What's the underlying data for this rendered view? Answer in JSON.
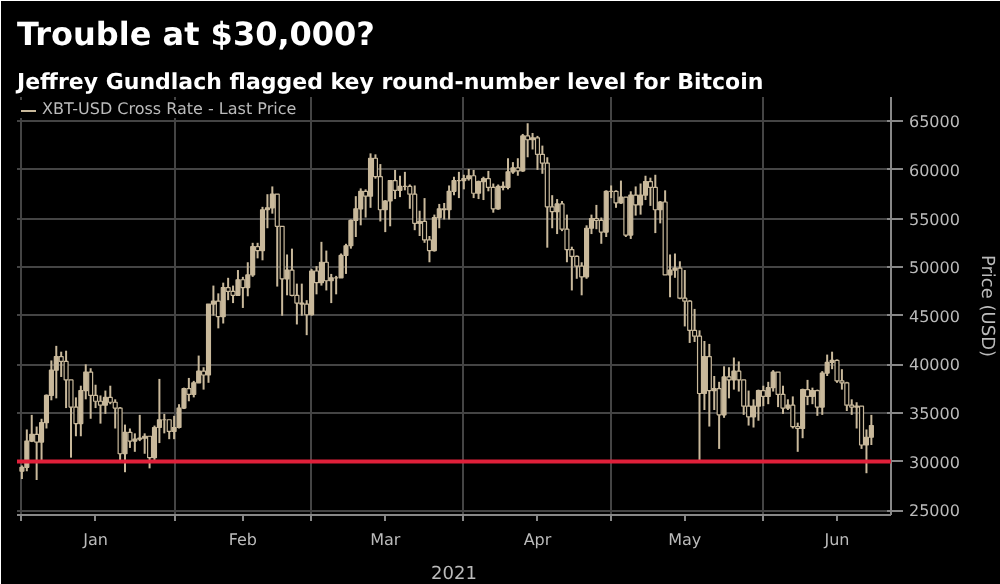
{
  "chart_data": {
    "type": "candlestick",
    "title": "Trouble at $30,000?",
    "subtitle": "Jeffrey Gundlach flagged key round-number level for Bitcoin",
    "xlabel": "2021",
    "ylabel": "Price (USD)",
    "x": [
      "2021-01-01",
      "2021-01-02",
      "2021-01-03",
      "2021-01-04",
      "2021-01-05",
      "2021-01-06",
      "2021-01-07",
      "2021-01-08",
      "2021-01-09",
      "2021-01-10",
      "2021-01-11",
      "2021-01-12",
      "2021-01-13",
      "2021-01-14",
      "2021-01-15",
      "2021-01-16",
      "2021-01-17",
      "2021-01-18",
      "2021-01-19",
      "2021-01-20",
      "2021-01-21",
      "2021-01-22",
      "2021-01-23",
      "2021-01-24",
      "2021-01-25",
      "2021-01-26",
      "2021-01-27",
      "2021-01-28",
      "2021-01-29",
      "2021-01-30",
      "2021-01-31",
      "2021-02-01",
      "2021-02-02",
      "2021-02-03",
      "2021-02-04",
      "2021-02-05",
      "2021-02-06",
      "2021-02-07",
      "2021-02-08",
      "2021-02-09",
      "2021-02-10",
      "2021-02-11",
      "2021-02-12",
      "2021-02-13",
      "2021-02-14",
      "2021-02-15",
      "2021-02-16",
      "2021-02-17",
      "2021-02-18",
      "2021-02-19",
      "2021-02-20",
      "2021-02-21",
      "2021-02-22",
      "2021-02-23",
      "2021-02-24",
      "2021-02-25",
      "2021-02-26",
      "2021-02-27",
      "2021-02-28",
      "2021-03-01",
      "2021-03-02",
      "2021-03-03",
      "2021-03-04",
      "2021-03-05",
      "2021-03-06",
      "2021-03-07",
      "2021-03-08",
      "2021-03-09",
      "2021-03-10",
      "2021-03-11",
      "2021-03-12",
      "2021-03-13",
      "2021-03-14",
      "2021-03-15",
      "2021-03-16",
      "2021-03-17",
      "2021-03-18",
      "2021-03-19",
      "2021-03-20",
      "2021-03-21",
      "2021-03-22",
      "2021-03-23",
      "2021-03-24",
      "2021-03-25",
      "2021-03-26",
      "2021-03-27",
      "2021-03-28",
      "2021-03-29",
      "2021-03-30",
      "2021-03-31",
      "2021-04-01",
      "2021-04-02",
      "2021-04-03",
      "2021-04-04",
      "2021-04-05",
      "2021-04-06",
      "2021-04-07",
      "2021-04-08",
      "2021-04-09",
      "2021-04-10",
      "2021-04-11",
      "2021-04-12",
      "2021-04-13",
      "2021-04-14",
      "2021-04-15",
      "2021-04-16",
      "2021-04-17",
      "2021-04-18",
      "2021-04-19",
      "2021-04-20",
      "2021-04-21",
      "2021-04-22",
      "2021-04-23",
      "2021-04-24",
      "2021-04-25",
      "2021-04-26",
      "2021-04-27",
      "2021-04-28",
      "2021-04-29",
      "2021-04-30",
      "2021-05-01",
      "2021-05-02",
      "2021-05-03",
      "2021-05-04",
      "2021-05-05",
      "2021-05-06",
      "2021-05-07",
      "2021-05-08",
      "2021-05-09",
      "2021-05-10",
      "2021-05-11",
      "2021-05-12",
      "2021-05-13",
      "2021-05-14",
      "2021-05-15",
      "2021-05-16",
      "2021-05-17",
      "2021-05-18",
      "2021-05-19",
      "2021-05-20",
      "2021-05-21",
      "2021-05-22",
      "2021-05-23",
      "2021-05-24",
      "2021-05-25",
      "2021-05-26",
      "2021-05-27",
      "2021-05-28",
      "2021-05-29",
      "2021-05-30",
      "2021-05-31",
      "2021-06-01",
      "2021-06-02",
      "2021-06-03",
      "2021-06-04",
      "2021-06-05",
      "2021-06-06",
      "2021-06-07",
      "2021-06-08",
      "2021-06-09",
      "2021-06-10",
      "2021-06-11",
      "2021-06-12",
      "2021-06-13",
      "2021-06-14",
      "2021-06-15",
      "2021-06-16",
      "2021-06-17",
      "2021-06-18",
      "2021-06-19",
      "2021-06-20",
      "2021-06-21",
      "2021-06-22",
      "2021-06-23"
    ],
    "series": [
      {
        "name": "XBT-USD Cross Rate - Last Price",
        "color": "#c9b99b",
        "ohlc": [
          [
            29000,
            29600,
            28200,
            29400
          ],
          [
            29400,
            33300,
            29000,
            32100
          ],
          [
            32100,
            34800,
            32000,
            32800
          ],
          [
            32800,
            33600,
            28100,
            32000
          ],
          [
            32000,
            34400,
            30000,
            34000
          ],
          [
            34000,
            36900,
            33400,
            36800
          ],
          [
            36800,
            40400,
            36300,
            39400
          ],
          [
            39400,
            41900,
            36500,
            40800
          ],
          [
            40800,
            41300,
            38700,
            40300
          ],
          [
            40300,
            41400,
            35500,
            38400
          ],
          [
            38400,
            38400,
            30400,
            35600
          ],
          [
            35600,
            36600,
            32600,
            33900
          ],
          [
            33900,
            37800,
            32600,
            37300
          ],
          [
            37300,
            40000,
            36400,
            39200
          ],
          [
            39200,
            39600,
            34400,
            36800
          ],
          [
            36800,
            37900,
            35500,
            36200
          ],
          [
            36200,
            36800,
            33900,
            35800
          ],
          [
            35800,
            37300,
            34900,
            36600
          ],
          [
            36600,
            37800,
            35900,
            36100
          ],
          [
            36100,
            36400,
            33400,
            35500
          ],
          [
            35500,
            35600,
            30100,
            30800
          ],
          [
            30800,
            33800,
            28900,
            33000
          ],
          [
            33000,
            33400,
            31400,
            32100
          ],
          [
            32100,
            32900,
            31000,
            32300
          ],
          [
            32300,
            34800,
            32100,
            32400
          ],
          [
            32400,
            32900,
            30800,
            32600
          ],
          [
            32600,
            32600,
            29300,
            30400
          ],
          [
            30400,
            33700,
            29900,
            33500
          ],
          [
            33500,
            38500,
            31900,
            34300
          ],
          [
            34300,
            34900,
            32900,
            34300
          ],
          [
            34300,
            34300,
            32300,
            33100
          ],
          [
            33100,
            34700,
            32300,
            33500
          ],
          [
            33500,
            35900,
            33400,
            35500
          ],
          [
            35500,
            37600,
            35400,
            37500
          ],
          [
            37500,
            38600,
            36200,
            36900
          ],
          [
            36900,
            38300,
            36600,
            38100
          ],
          [
            38100,
            40900,
            38100,
            39300
          ],
          [
            39300,
            39700,
            37400,
            38900
          ],
          [
            38900,
            46200,
            38100,
            46200
          ],
          [
            46200,
            48100,
            45000,
            46500
          ],
          [
            46500,
            47300,
            43700,
            44900
          ],
          [
            44900,
            48400,
            44200,
            47900
          ],
          [
            47900,
            48900,
            46600,
            47500
          ],
          [
            47500,
            48100,
            46300,
            47100
          ],
          [
            47100,
            49700,
            47100,
            48700
          ],
          [
            48700,
            49000,
            45800,
            47900
          ],
          [
            47900,
            50500,
            47000,
            49200
          ],
          [
            49200,
            52500,
            49000,
            52100
          ],
          [
            52100,
            52500,
            50900,
            51700
          ],
          [
            51700,
            56200,
            50700,
            55900
          ],
          [
            55900,
            57500,
            54000,
            56100
          ],
          [
            56100,
            58300,
            55500,
            57500
          ],
          [
            57500,
            57500,
            48000,
            54200
          ],
          [
            54200,
            54200,
            45000,
            48800
          ],
          [
            48800,
            51300,
            47100,
            49700
          ],
          [
            49700,
            51900,
            47000,
            47100
          ],
          [
            47100,
            48300,
            44100,
            46300
          ],
          [
            46300,
            48300,
            45000,
            46200
          ],
          [
            46200,
            46600,
            43000,
            45100
          ],
          [
            45100,
            49800,
            45000,
            49600
          ],
          [
            49600,
            50100,
            47200,
            48400
          ],
          [
            48400,
            52600,
            48100,
            50500
          ],
          [
            50500,
            51700,
            47600,
            48600
          ],
          [
            48600,
            49300,
            46300,
            48900
          ],
          [
            48900,
            49100,
            47200,
            48900
          ],
          [
            48900,
            51400,
            48900,
            51200
          ],
          [
            51200,
            52400,
            49300,
            52200
          ],
          [
            52200,
            54900,
            51900,
            54800
          ],
          [
            54800,
            57300,
            53100,
            56000
          ],
          [
            56000,
            58100,
            54300,
            57800
          ],
          [
            57800,
            58000,
            55100,
            57300
          ],
          [
            57300,
            61700,
            56100,
            61200
          ],
          [
            61200,
            61600,
            59100,
            59300
          ],
          [
            59300,
            60600,
            54700,
            55900
          ],
          [
            55900,
            56900,
            53600,
            56800
          ],
          [
            56800,
            58900,
            54200,
            58900
          ],
          [
            58900,
            60000,
            57000,
            57900
          ],
          [
            57900,
            59400,
            57200,
            58300
          ],
          [
            58300,
            59800,
            57900,
            58300
          ],
          [
            58300,
            58500,
            56000,
            57500
          ],
          [
            57500,
            58400,
            53800,
            54500
          ],
          [
            54500,
            55800,
            53200,
            54700
          ],
          [
            54700,
            57100,
            52500,
            52800
          ],
          [
            52800,
            53200,
            50500,
            51700
          ],
          [
            51700,
            55400,
            51600,
            55100
          ],
          [
            55100,
            56500,
            54000,
            56000
          ],
          [
            56000,
            56600,
            54900,
            55900
          ],
          [
            55900,
            58400,
            54900,
            57800
          ],
          [
            57800,
            59300,
            57400,
            58900
          ],
          [
            58900,
            59800,
            57100,
            58900
          ],
          [
            58900,
            59500,
            58000,
            59100
          ],
          [
            59100,
            60100,
            58900,
            59400
          ],
          [
            59400,
            60000,
            57100,
            57600
          ],
          [
            57600,
            58900,
            57000,
            58800
          ],
          [
            58800,
            59300,
            56900,
            59100
          ],
          [
            59100,
            59900,
            57800,
            58200
          ],
          [
            58200,
            58600,
            55600,
            56000
          ],
          [
            56000,
            58500,
            55900,
            58300
          ],
          [
            58300,
            58800,
            57900,
            58200
          ],
          [
            58200,
            61200,
            58000,
            59800
          ],
          [
            59800,
            60800,
            59600,
            60200
          ],
          [
            60200,
            61200,
            59400,
            59900
          ],
          [
            59900,
            63700,
            59800,
            63500
          ],
          [
            63500,
            64800,
            61300,
            63100
          ],
          [
            63100,
            63800,
            62100,
            63300
          ],
          [
            63300,
            63500,
            60000,
            61600
          ],
          [
            61600,
            62500,
            59600,
            60700
          ],
          [
            60700,
            61300,
            52000,
            56200
          ],
          [
            56200,
            57400,
            54000,
            55700
          ],
          [
            55700,
            57000,
            53400,
            56500
          ],
          [
            56500,
            56800,
            53700,
            53900
          ],
          [
            53900,
            55400,
            50500,
            51800
          ],
          [
            51800,
            52100,
            47600,
            51100
          ],
          [
            51100,
            51200,
            48800,
            50100
          ],
          [
            50100,
            50500,
            47100,
            49000
          ],
          [
            49000,
            54300,
            48800,
            54000
          ],
          [
            54000,
            55400,
            53400,
            55000
          ],
          [
            55000,
            56400,
            53900,
            54800
          ],
          [
            54800,
            55100,
            52400,
            53600
          ],
          [
            53600,
            57900,
            53100,
            57800
          ],
          [
            57800,
            58400,
            57100,
            57800
          ],
          [
            57800,
            57900,
            56100,
            56600
          ],
          [
            56600,
            58900,
            56500,
            57200
          ],
          [
            57200,
            57200,
            53100,
            53300
          ],
          [
            53300,
            57800,
            52900,
            57400
          ],
          [
            57400,
            58300,
            55300,
            56400
          ],
          [
            56400,
            58600,
            55400,
            57400
          ],
          [
            57400,
            59400,
            56900,
            58800
          ],
          [
            58800,
            59200,
            56300,
            58200
          ],
          [
            58200,
            59500,
            53500,
            55900
          ],
          [
            55900,
            56800,
            54500,
            56700
          ],
          [
            56700,
            57900,
            49200,
            49200
          ],
          [
            49200,
            51300,
            46900,
            49700
          ],
          [
            49700,
            51400,
            48900,
            49900
          ],
          [
            49900,
            50600,
            46700,
            46800
          ],
          [
            46800,
            49700,
            43900,
            46500
          ],
          [
            46500,
            46600,
            42200,
            43500
          ],
          [
            43500,
            45700,
            42300,
            42900
          ],
          [
            42900,
            43500,
            30100,
            37000
          ],
          [
            37000,
            42400,
            35300,
            40800
          ],
          [
            40800,
            42100,
            33600,
            37300
          ],
          [
            37300,
            38800,
            35300,
            37500
          ],
          [
            37500,
            38200,
            31300,
            34800
          ],
          [
            34800,
            39800,
            34500,
            38700
          ],
          [
            38700,
            39700,
            36500,
            38400
          ],
          [
            38400,
            40700,
            37400,
            39300
          ],
          [
            39300,
            40300,
            37200,
            38400
          ],
          [
            38400,
            38400,
            34800,
            35700
          ],
          [
            35700,
            37300,
            33700,
            34600
          ],
          [
            34600,
            36400,
            33500,
            35700
          ],
          [
            35700,
            37400,
            34200,
            37300
          ],
          [
            37300,
            37800,
            35700,
            36700
          ],
          [
            36700,
            38200,
            35900,
            37600
          ],
          [
            37600,
            39400,
            37200,
            39200
          ],
          [
            39200,
            39200,
            35600,
            36900
          ],
          [
            36900,
            37800,
            34900,
            35500
          ],
          [
            35500,
            36400,
            35300,
            35800
          ],
          [
            35800,
            36700,
            33400,
            33600
          ],
          [
            33600,
            34000,
            31000,
            33400
          ],
          [
            33400,
            37500,
            32400,
            37400
          ],
          [
            37400,
            38400,
            35800,
            36700
          ],
          [
            36700,
            37600,
            35900,
            37300
          ],
          [
            37300,
            37400,
            34700,
            35600
          ],
          [
            35600,
            39300,
            34800,
            39100
          ],
          [
            39100,
            41000,
            38800,
            40200
          ],
          [
            40200,
            41300,
            39500,
            40400
          ],
          [
            40400,
            40500,
            38100,
            38300
          ],
          [
            38300,
            39500,
            37400,
            38100
          ],
          [
            38100,
            38200,
            35200,
            35800
          ],
          [
            35800,
            36400,
            34800,
            35600
          ],
          [
            35600,
            36100,
            33400,
            35700
          ],
          [
            35700,
            35700,
            31300,
            31700
          ],
          [
            31700,
            33300,
            28800,
            32500
          ],
          [
            32500,
            34800,
            31700,
            33700
          ]
        ]
      }
    ],
    "xlim": [
      "2020-12-31",
      "2021-06-27"
    ],
    "xticks": [
      {
        "value": "2021-01-01",
        "label": null
      },
      {
        "value": "2021-01-16",
        "label": "Jan"
      },
      {
        "value": "2021-02-01",
        "label": null
      },
      {
        "value": "2021-02-15",
        "label": "Feb"
      },
      {
        "value": "2021-03-01",
        "label": null
      },
      {
        "value": "2021-03-16",
        "label": "Mar"
      },
      {
        "value": "2021-04-01",
        "label": null
      },
      {
        "value": "2021-04-16",
        "label": "Apr"
      },
      {
        "value": "2021-05-01",
        "label": null
      },
      {
        "value": "2021-05-16",
        "label": "May"
      },
      {
        "value": "2021-06-01",
        "label": null
      },
      {
        "value": "2021-06-16",
        "label": "Jun"
      }
    ],
    "ylim": [
      24500,
      67500
    ],
    "yticks": [
      25000,
      30000,
      35000,
      40000,
      45000,
      50000,
      55000,
      60000,
      65000
    ],
    "ref_lines": [
      {
        "axis": "y",
        "value": 30000,
        "label": null,
        "color": "#e0203a"
      }
    ],
    "grid": true,
    "legend": "top left"
  }
}
